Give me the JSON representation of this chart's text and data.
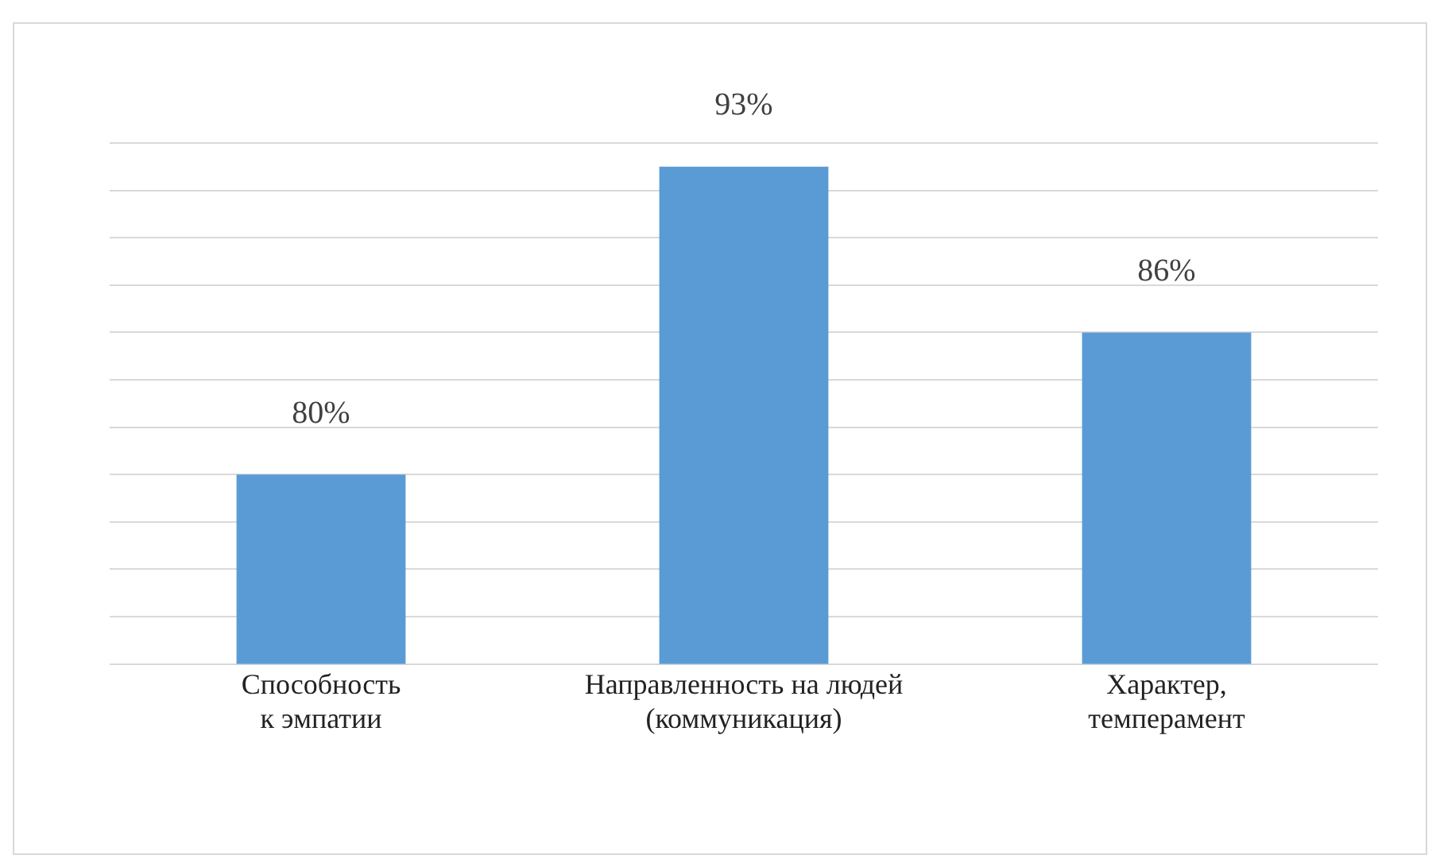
{
  "chart_data": {
    "type": "bar",
    "categories": [
      "Способность\nк эмпатии",
      "Направленность на людей\n(коммуникация)",
      "Характер,\nтемперамент"
    ],
    "values": [
      80,
      93,
      86
    ],
    "color": "#5b9bd5",
    "ylim": [
      72,
      94
    ],
    "yticks": [
      {
        "value": 72,
        "label": null
      },
      {
        "value": 74,
        "label": null
      },
      {
        "value": 76,
        "label": null
      },
      {
        "value": 78,
        "label": null
      },
      {
        "value": 80,
        "label": null
      },
      {
        "value": 82,
        "label": null
      },
      {
        "value": 84,
        "label": null
      },
      {
        "value": 86,
        "label": null
      },
      {
        "value": 88,
        "label": null
      },
      {
        "value": 90,
        "label": null
      },
      {
        "value": 92,
        "label": null
      },
      {
        "value": 94,
        "label": null
      }
    ],
    "tick_labels": "x",
    "grid": "y",
    "data_labels": true,
    "value_labels": [
      "80%",
      "93%",
      "86%"
    ]
  }
}
